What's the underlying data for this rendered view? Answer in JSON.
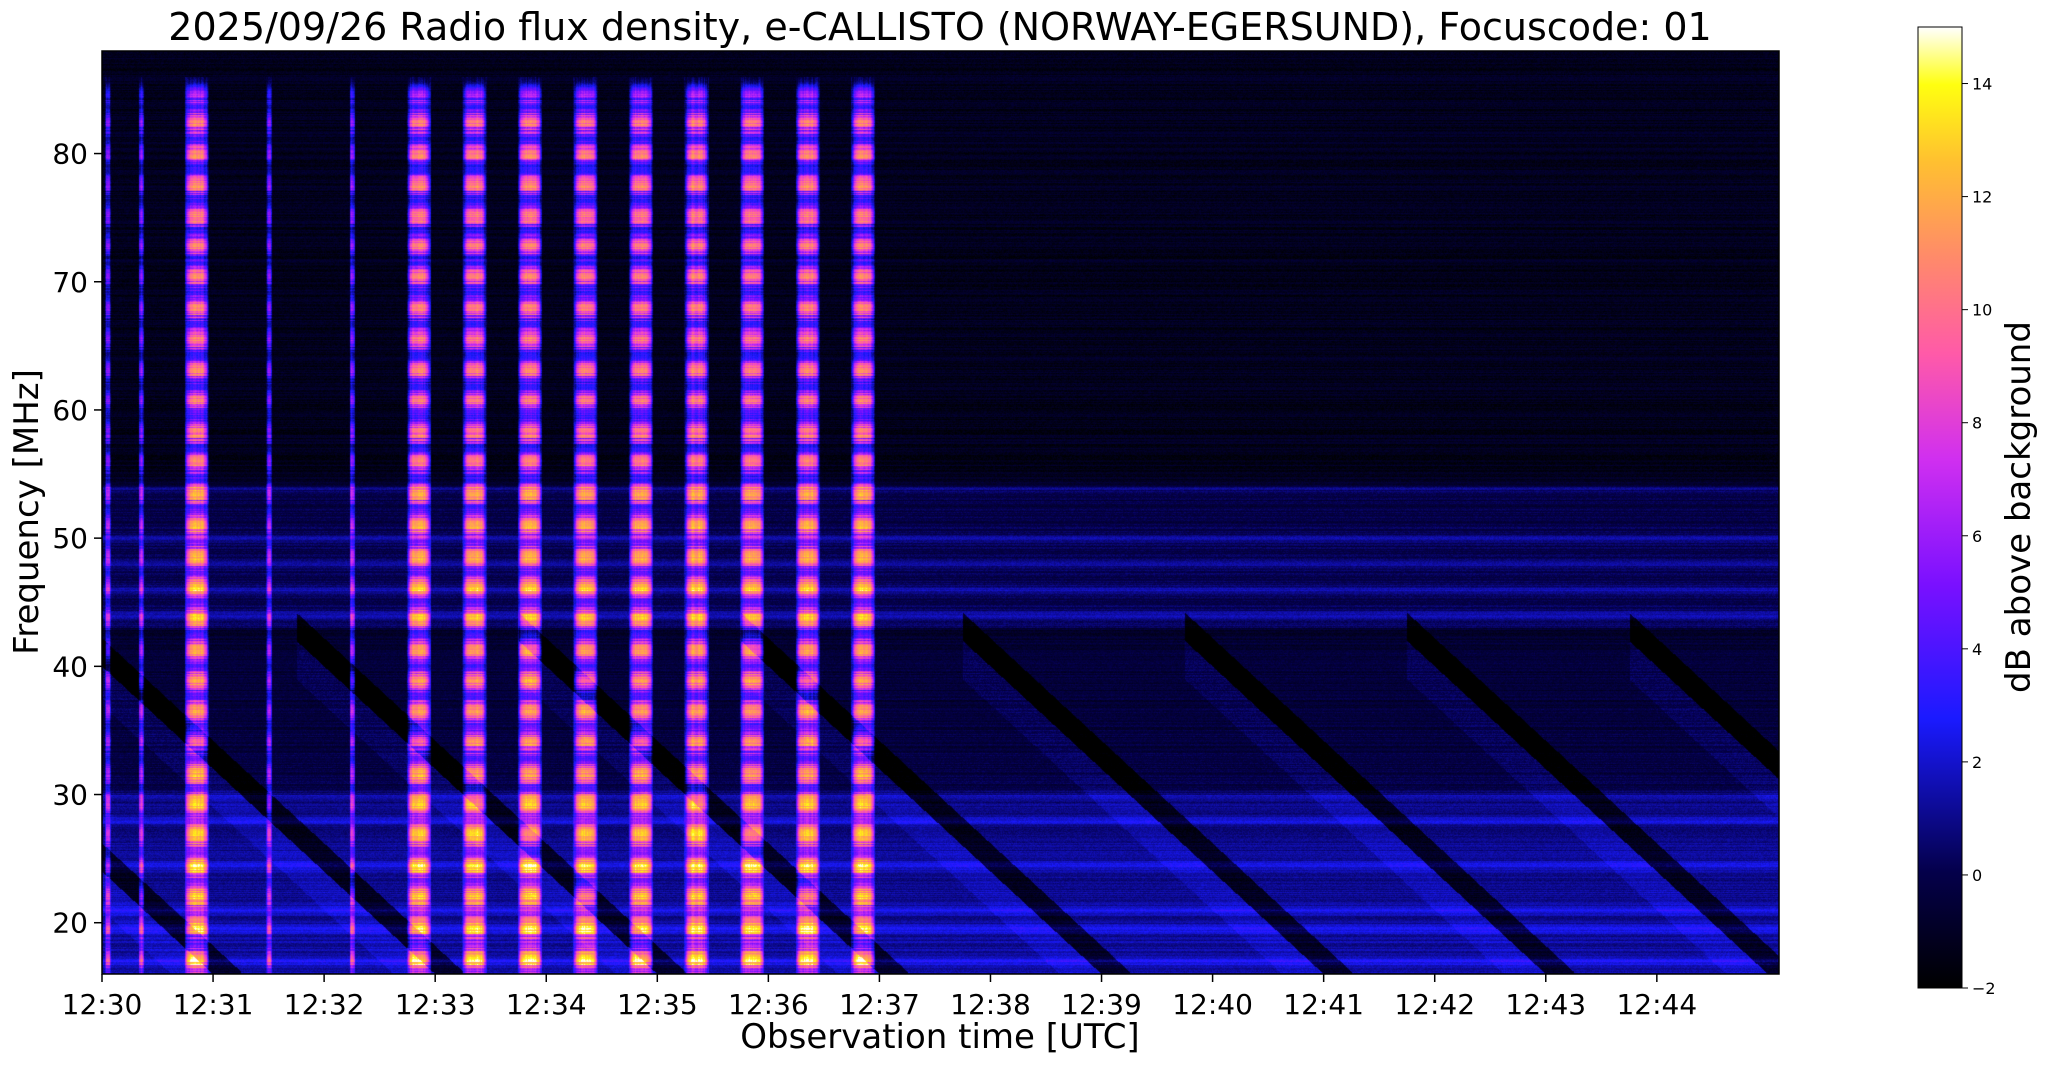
{
  "chart_data": {
    "type": "heatmap",
    "title": "2025/09/26  Radio flux density, e-CALLISTO (NORWAY-EGERSUND), Focuscode: 01",
    "xlabel": "Observation time [UTC]",
    "ylabel": "Frequency [MHz]",
    "x_tick_labels": [
      "12:30",
      "12:31",
      "12:32",
      "12:33",
      "12:34",
      "12:35",
      "12:36",
      "12:37",
      "12:38",
      "12:39",
      "12:40",
      "12:41",
      "12:42",
      "12:43",
      "12:44"
    ],
    "x_range_minutes": [
      0,
      15.1
    ],
    "y_ticks": [
      20,
      30,
      40,
      50,
      60,
      70,
      80
    ],
    "y_tick_labels": [
      "20",
      "30",
      "40",
      "50",
      "60",
      "70",
      "80"
    ],
    "ylim": [
      16,
      88
    ],
    "colorbar": {
      "label": "dB above background",
      "range": [
        -2,
        15
      ],
      "ticks": [
        -2,
        0,
        2,
        4,
        6,
        8,
        10,
        12,
        14
      ],
      "tick_labels": [
        "−2",
        "0",
        "2",
        "4",
        "6",
        "8",
        "10",
        "12",
        "14"
      ],
      "colormap": "gnuplot2",
      "stops": [
        {
          "v": 0.0,
          "c": "#000000"
        },
        {
          "v": 0.12,
          "c": "#04004a"
        },
        {
          "v": 0.28,
          "c": "#1a1aff"
        },
        {
          "v": 0.42,
          "c": "#7a10ff"
        },
        {
          "v": 0.55,
          "c": "#d02ff0"
        },
        {
          "v": 0.66,
          "c": "#ff5aa8"
        },
        {
          "v": 0.76,
          "c": "#ff8a6a"
        },
        {
          "v": 0.86,
          "c": "#ffc030"
        },
        {
          "v": 0.94,
          "c": "#ffff10"
        },
        {
          "v": 1.0,
          "c": "#ffffff"
        }
      ]
    },
    "features": {
      "broadband_bursts_minutes": [
        0.05,
        0.35,
        0.85,
        1.5,
        2.25,
        2.85,
        3.35,
        3.85,
        4.35,
        4.85,
        5.35,
        5.85,
        6.35,
        6.85
      ],
      "strong_bursts_minutes": [
        0.85,
        2.85,
        3.35,
        3.85,
        4.35,
        4.85,
        5.35,
        5.85,
        6.35,
        6.85
      ],
      "burst_peak_db": 14,
      "drifting_bands_start_minutes": [
        -2,
        0,
        2,
        4,
        6,
        8,
        10,
        12,
        14
      ],
      "interference_bands_mhz": [
        17,
        19.5,
        21,
        24.5,
        28,
        30,
        44,
        46,
        48,
        50,
        54
      ]
    }
  }
}
